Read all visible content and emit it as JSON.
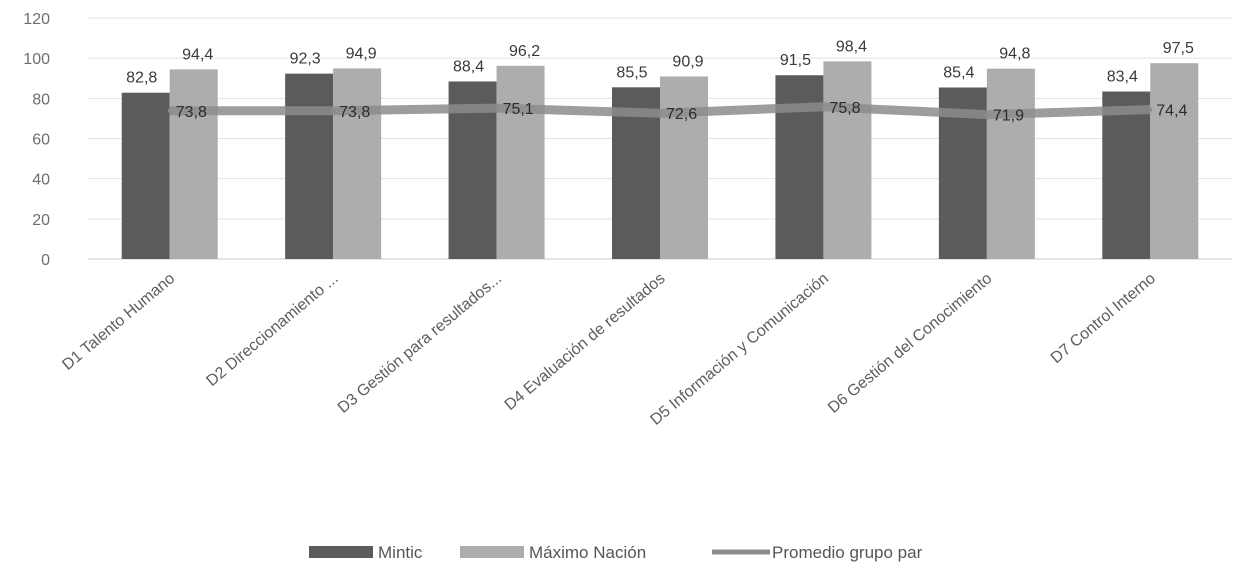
{
  "chart_data": {
    "type": "bar",
    "categories": [
      "D1 Talento Humano",
      "D2 Direccionamiento ...",
      "D3 Gestión para resultados...",
      "D4 Evaluación de resultados",
      "D5 Información y Comunicación",
      "D6 Gestión del Conocimiento",
      "D7 Control Interno"
    ],
    "series": [
      {
        "name": "Mintic",
        "kind": "bar",
        "color": "#5b5b5b",
        "values": [
          82.8,
          92.3,
          88.4,
          85.5,
          91.5,
          85.4,
          83.4
        ],
        "labels": [
          "82,8",
          "92,3",
          "88,4",
          "85,5",
          "91,5",
          "85,4",
          "83,4"
        ]
      },
      {
        "name": "Máximo Nación",
        "kind": "bar",
        "color": "#adadad",
        "values": [
          94.4,
          94.9,
          96.2,
          90.9,
          98.4,
          94.8,
          97.5
        ],
        "labels": [
          "94,4",
          "94,9",
          "96,2",
          "90,9",
          "98,4",
          "94,8",
          "97,5"
        ]
      },
      {
        "name": "Promedio grupo par",
        "kind": "line",
        "color": "#8c8c8c",
        "values": [
          73.8,
          73.8,
          75.1,
          72.6,
          75.8,
          71.9,
          74.4
        ],
        "labels": [
          "73,8",
          "73,8",
          "75,1",
          "72,6",
          "75,8",
          "71,9",
          "74,4"
        ]
      }
    ],
    "yticks": [
      0,
      20,
      40,
      60,
      80,
      100,
      120
    ],
    "ylim": [
      0,
      120
    ],
    "grid": true,
    "legend_position": "bottom"
  }
}
